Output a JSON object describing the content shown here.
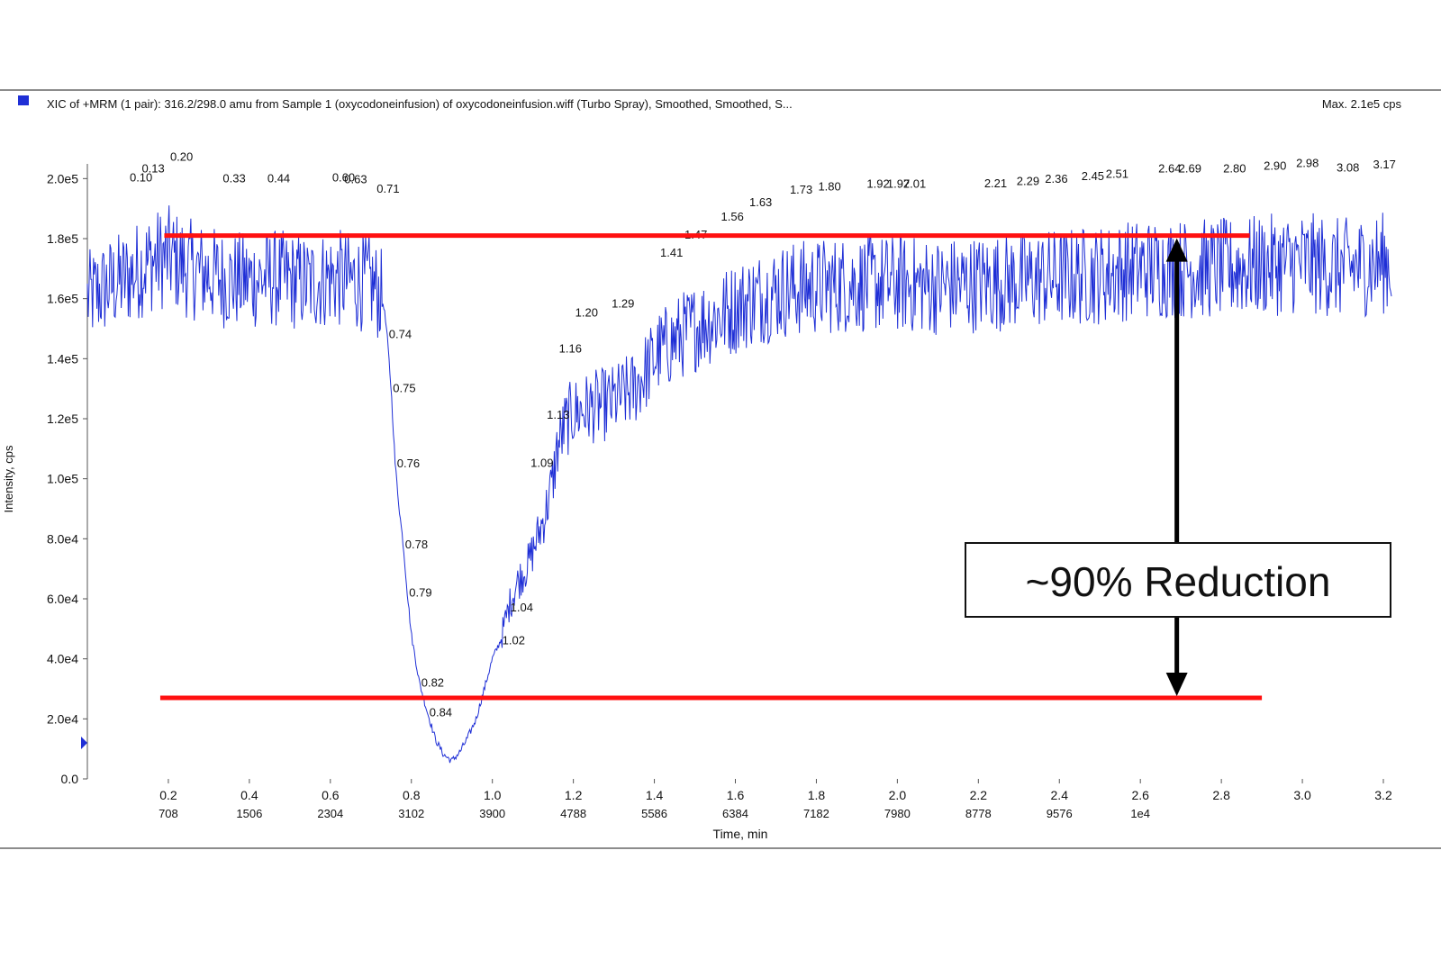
{
  "header": {
    "legend_color": "#1f2fd6",
    "title": "XIC of +MRM (1 pair): 316.2/298.0 amu from Sample 1 (oxycodoneinfusion) of oxycodoneinfusion.wiff (Turbo Spray), Smoothed, Smoothed, S...",
    "max_label": "Max. 2.1e5 cps"
  },
  "chart_data": {
    "type": "line",
    "xlabel": "Time, min",
    "ylabel": "Intensity, cps",
    "xlim": [
      0.0,
      3.22
    ],
    "ylim": [
      0,
      210000
    ],
    "x_ticks": [
      {
        "v": 0.2,
        "label": "0.2",
        "scan": "708"
      },
      {
        "v": 0.4,
        "label": "0.4",
        "scan": "1506"
      },
      {
        "v": 0.6,
        "label": "0.6",
        "scan": "2304"
      },
      {
        "v": 0.8,
        "label": "0.8",
        "scan": "3102"
      },
      {
        "v": 1.0,
        "label": "1.0",
        "scan": "3900"
      },
      {
        "v": 1.2,
        "label": "1.2",
        "scan": "4788"
      },
      {
        "v": 1.4,
        "label": "1.4",
        "scan": "5586"
      },
      {
        "v": 1.6,
        "label": "1.6",
        "scan": "6384"
      },
      {
        "v": 1.8,
        "label": "1.8",
        "scan": "7182"
      },
      {
        "v": 2.0,
        "label": "2.0",
        "scan": "7980"
      },
      {
        "v": 2.2,
        "label": "2.2",
        "scan": "8778"
      },
      {
        "v": 2.4,
        "label": "2.4",
        "scan": "9576"
      },
      {
        "v": 2.6,
        "label": "2.6",
        "scan": "1e4"
      },
      {
        "v": 2.8,
        "label": "2.8",
        "scan": ""
      },
      {
        "v": 3.0,
        "label": "3.0",
        "scan": ""
      },
      {
        "v": 3.2,
        "label": "3.2",
        "scan": ""
      }
    ],
    "y_ticks": [
      {
        "v": 0,
        "label": "0.0"
      },
      {
        "v": 20000,
        "label": "2.0e4"
      },
      {
        "v": 40000,
        "label": "4.0e4"
      },
      {
        "v": 60000,
        "label": "6.0e4"
      },
      {
        "v": 80000,
        "label": "8.0e4"
      },
      {
        "v": 100000,
        "label": "1.0e5"
      },
      {
        "v": 120000,
        "label": "1.2e5"
      },
      {
        "v": 140000,
        "label": "1.4e5"
      },
      {
        "v": 160000,
        "label": "1.6e5"
      },
      {
        "v": 180000,
        "label": "1.8e5"
      },
      {
        "v": 200000,
        "label": "2.0e5"
      }
    ],
    "trace_color": "#1f2fd6",
    "series": [
      {
        "x": [
          0.0,
          0.05,
          0.1,
          0.15,
          0.2,
          0.25,
          0.3,
          0.35,
          0.4,
          0.45,
          0.5,
          0.55,
          0.6,
          0.65,
          0.7,
          0.73,
          0.74,
          0.75,
          0.76,
          0.77,
          0.78,
          0.79,
          0.8,
          0.82,
          0.84,
          0.86,
          0.88,
          0.9,
          0.92,
          0.94,
          0.96,
          0.98,
          1.0,
          1.02,
          1.04,
          1.06,
          1.09,
          1.11,
          1.13,
          1.15,
          1.16,
          1.18,
          1.2,
          1.25,
          1.29,
          1.35,
          1.41,
          1.47,
          1.52,
          1.56,
          1.6,
          1.65,
          1.7,
          1.73,
          1.8,
          1.9,
          2.0,
          2.1,
          2.2,
          2.3,
          2.4,
          2.5,
          2.6,
          2.7,
          2.8,
          2.9,
          3.0,
          3.1,
          3.2
        ],
        "y": [
          160000,
          164000,
          167000,
          172000,
          174000,
          170000,
          168000,
          166000,
          166000,
          167000,
          166000,
          165000,
          167000,
          166000,
          165000,
          160000,
          148000,
          130000,
          105000,
          90000,
          78000,
          62000,
          48000,
          32000,
          22000,
          13000,
          8000,
          6000,
          9000,
          14000,
          20000,
          30000,
          40000,
          46000,
          57000,
          65000,
          72000,
          80000,
          88000,
          100000,
          110000,
          118000,
          122000,
          124000,
          125000,
          130000,
          142000,
          148000,
          152000,
          154000,
          157000,
          160000,
          162000,
          163000,
          164000,
          165000,
          165000,
          164000,
          165000,
          166000,
          167000,
          168000,
          170000,
          170000,
          170000,
          171000,
          172000,
          170000,
          172000
        ]
      }
    ],
    "annotations": [
      {
        "x": 0.1,
        "label": "0.10"
      },
      {
        "x": 0.13,
        "label": "0.13"
      },
      {
        "x": 0.2,
        "label": "0.20"
      },
      {
        "x": 0.33,
        "label": "0.33"
      },
      {
        "x": 0.44,
        "label": "0.44"
      },
      {
        "x": 0.6,
        "label": "0.60"
      },
      {
        "x": 0.63,
        "label": "0.63"
      },
      {
        "x": 0.71,
        "label": "0.71"
      },
      {
        "x": 0.74,
        "label": "0.74"
      },
      {
        "x": 0.75,
        "label": "0.75"
      },
      {
        "x": 0.76,
        "label": "0.76"
      },
      {
        "x": 0.78,
        "label": "0.78"
      },
      {
        "x": 0.79,
        "label": "0.79"
      },
      {
        "x": 0.82,
        "label": "0.82"
      },
      {
        "x": 0.84,
        "label": "0.84"
      },
      {
        "x": 1.02,
        "label": "1.02"
      },
      {
        "x": 1.04,
        "label": "1.04"
      },
      {
        "x": 1.09,
        "label": "1.09"
      },
      {
        "x": 1.13,
        "label": "1.13"
      },
      {
        "x": 1.16,
        "label": "1.16"
      },
      {
        "x": 1.2,
        "label": "1.20"
      },
      {
        "x": 1.29,
        "label": "1.29"
      },
      {
        "x": 1.41,
        "label": "1.41"
      },
      {
        "x": 1.47,
        "label": "1.47"
      },
      {
        "x": 1.56,
        "label": "1.56"
      },
      {
        "x": 1.63,
        "label": "1.63"
      },
      {
        "x": 1.73,
        "label": "1.73"
      },
      {
        "x": 1.8,
        "label": "1.80"
      },
      {
        "x": 1.92,
        "label": "1.92"
      },
      {
        "x": 1.97,
        "label": "1.97"
      },
      {
        "x": 2.01,
        "label": "2.01"
      },
      {
        "x": 2.21,
        "label": "2.21"
      },
      {
        "x": 2.29,
        "label": "2.29"
      },
      {
        "x": 2.36,
        "label": "2.36"
      },
      {
        "x": 2.45,
        "label": "2.45"
      },
      {
        "x": 2.51,
        "label": "2.51"
      },
      {
        "x": 2.64,
        "label": "2.64"
      },
      {
        "x": 2.69,
        "label": "2.69"
      },
      {
        "x": 2.8,
        "label": "2.80"
      },
      {
        "x": 2.9,
        "label": "2.90"
      },
      {
        "x": 2.98,
        "label": "2.98"
      },
      {
        "x": 3.08,
        "label": "3.08"
      },
      {
        "x": 3.17,
        "label": "3.17"
      }
    ],
    "reference_lines": [
      {
        "name": "baseline",
        "y": 181000,
        "x_from": 0.19,
        "x_to": 2.87,
        "color": "#ff1010"
      },
      {
        "name": "suppressed",
        "y": 27000,
        "x_from": 0.18,
        "x_to": 2.9,
        "color": "#ff1010"
      }
    ],
    "callout": {
      "text": "~90% Reduction",
      "arrow_x": 2.69,
      "arrow_color": "#000000"
    }
  }
}
